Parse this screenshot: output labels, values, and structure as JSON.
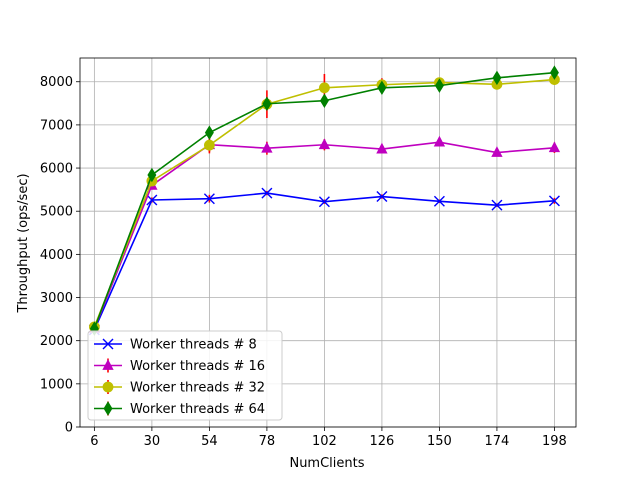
{
  "chart_data": {
    "type": "line",
    "title": "",
    "xlabel": "NumClients",
    "ylabel": "Throughput (ops/sec)",
    "x": [
      6,
      30,
      54,
      78,
      102,
      126,
      150,
      174,
      198
    ],
    "xticks": [
      "6",
      "30",
      "54",
      "78",
      "102",
      "126",
      "150",
      "174",
      "198"
    ],
    "yticks": [
      "0",
      "1000",
      "2000",
      "3000",
      "4000",
      "5000",
      "6000",
      "7000",
      "8000"
    ],
    "ylim": [
      0,
      8550
    ],
    "xlim": [
      0,
      207
    ],
    "grid": true,
    "legend_position": "lower-left",
    "series": [
      {
        "name": "Worker threads # 8",
        "color": "#0000ff",
        "marker": "x",
        "values": [
          2250,
          5260,
          5290,
          5420,
          5220,
          5340,
          5230,
          5140,
          5240
        ],
        "errors": [
          0,
          60,
          90,
          50,
          50,
          50,
          40,
          40,
          70
        ]
      },
      {
        "name": "Worker threads # 16",
        "color": "#bf00bf",
        "marker": "triangle-up",
        "values": [
          2280,
          5600,
          6540,
          6460,
          6540,
          6440,
          6600,
          6360,
          6470
        ],
        "errors": [
          0,
          100,
          200,
          150,
          130,
          80,
          60,
          60,
          120
        ]
      },
      {
        "name": "Worker threads # 32",
        "color": "#bfbf00",
        "marker": "circle",
        "values": [
          2320,
          5700,
          6530,
          7480,
          7860,
          7930,
          7980,
          7940,
          8050
        ],
        "errors": [
          0,
          100,
          160,
          320,
          320,
          150,
          60,
          80,
          100
        ]
      },
      {
        "name": "Worker threads # 64",
        "color": "#008000",
        "marker": "diamond",
        "values": [
          2280,
          5840,
          6820,
          7490,
          7560,
          7860,
          7910,
          8090,
          8210
        ],
        "errors": [
          0,
          80,
          90,
          150,
          100,
          100,
          60,
          70,
          60
        ]
      }
    ]
  }
}
